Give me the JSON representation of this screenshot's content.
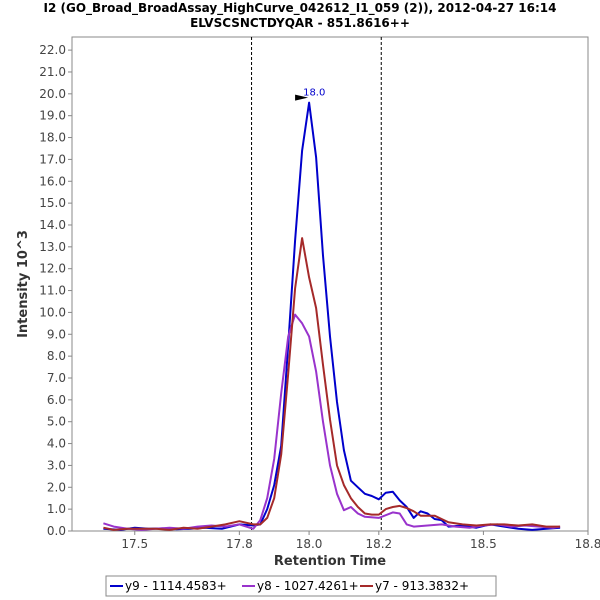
{
  "chart_data": {
    "type": "line",
    "title": "I2 (GO_Broad_BroadAssay_HighCurve_042612_I1_059 (2)), 2012-04-27 16:14",
    "subtitle": "ELVSCSNCTDYQAR - 851.8616++",
    "xlabel": "Retention Time",
    "ylabel": "Intensity 10^3",
    "xlim": [
      17.32,
      18.8
    ],
    "ylim": [
      0,
      22.6
    ],
    "x_ticks": [
      17.5,
      17.8,
      18.0,
      18.2,
      18.5,
      18.8
    ],
    "x_tick_labels": [
      "17.5",
      "17.8",
      "18.0",
      "18.2",
      "18.5",
      "18.8"
    ],
    "y_ticks": [
      0,
      1,
      2,
      3,
      4,
      5,
      6,
      7,
      8,
      9,
      10,
      11,
      12,
      13,
      14,
      15,
      16,
      17,
      18,
      19,
      20,
      21,
      22
    ],
    "y_tick_labels": [
      "0.0",
      "1.0",
      "2.0",
      "3.0",
      "4.0",
      "5.0",
      "6.0",
      "7.0",
      "8.0",
      "9.0",
      "10.0",
      "11.0",
      "12.0",
      "13.0",
      "14.0",
      "15.0",
      "16.0",
      "17.0",
      "18.0",
      "19.0",
      "20.0",
      "21.0",
      "22.0"
    ],
    "vlines": [
      17.835,
      18.207
    ],
    "grid": false,
    "legend_position": "bottom",
    "annotation": {
      "x": 18.0,
      "y": 19.6,
      "label": "18.0"
    },
    "series": [
      {
        "name": "y9 - 1114.4583+",
        "color": "#0000cc",
        "points": [
          [
            17.41,
            0.1
          ],
          [
            17.46,
            0.05
          ],
          [
            17.5,
            0.15
          ],
          [
            17.54,
            0.1
          ],
          [
            17.58,
            0.12
          ],
          [
            17.62,
            0.08
          ],
          [
            17.66,
            0.1
          ],
          [
            17.7,
            0.15
          ],
          [
            17.75,
            0.1
          ],
          [
            17.8,
            0.3
          ],
          [
            17.84,
            0.25
          ],
          [
            17.86,
            0.3
          ],
          [
            17.88,
            1.0
          ],
          [
            17.9,
            2.1
          ],
          [
            17.92,
            3.9
          ],
          [
            17.94,
            8.5
          ],
          [
            17.96,
            13.3
          ],
          [
            17.98,
            17.4
          ],
          [
            18.0,
            19.6
          ],
          [
            18.02,
            17.1
          ],
          [
            18.04,
            12.6
          ],
          [
            18.06,
            8.9
          ],
          [
            18.08,
            5.9
          ],
          [
            18.1,
            3.7
          ],
          [
            18.12,
            2.3
          ],
          [
            18.14,
            2.0
          ],
          [
            18.16,
            1.7
          ],
          [
            18.18,
            1.6
          ],
          [
            18.2,
            1.45
          ],
          [
            18.22,
            1.75
          ],
          [
            18.24,
            1.8
          ],
          [
            18.26,
            1.4
          ],
          [
            18.28,
            1.1
          ],
          [
            18.3,
            0.6
          ],
          [
            18.32,
            0.9
          ],
          [
            18.34,
            0.8
          ],
          [
            18.36,
            0.55
          ],
          [
            18.38,
            0.5
          ],
          [
            18.4,
            0.2
          ],
          [
            18.44,
            0.25
          ],
          [
            18.48,
            0.15
          ],
          [
            18.52,
            0.3
          ],
          [
            18.56,
            0.2
          ],
          [
            18.6,
            0.1
          ],
          [
            18.64,
            0.05
          ],
          [
            18.68,
            0.1
          ],
          [
            18.72,
            0.15
          ]
        ]
      },
      {
        "name": "y8 - 1027.4261+",
        "color": "#9933cc",
        "points": [
          [
            17.41,
            0.35
          ],
          [
            17.44,
            0.2
          ],
          [
            17.48,
            0.1
          ],
          [
            17.52,
            0.05
          ],
          [
            17.56,
            0.1
          ],
          [
            17.6,
            0.15
          ],
          [
            17.64,
            0.1
          ],
          [
            17.68,
            0.2
          ],
          [
            17.72,
            0.25
          ],
          [
            17.76,
            0.2
          ],
          [
            17.8,
            0.3
          ],
          [
            17.84,
            0.1
          ],
          [
            17.86,
            0.5
          ],
          [
            17.88,
            1.5
          ],
          [
            17.9,
            3.3
          ],
          [
            17.92,
            6.3
          ],
          [
            17.94,
            8.9
          ],
          [
            17.96,
            9.9
          ],
          [
            17.98,
            9.5
          ],
          [
            18.0,
            8.9
          ],
          [
            18.02,
            7.3
          ],
          [
            18.04,
            5.0
          ],
          [
            18.06,
            3.0
          ],
          [
            18.08,
            1.7
          ],
          [
            18.1,
            0.95
          ],
          [
            18.12,
            1.1
          ],
          [
            18.14,
            0.8
          ],
          [
            18.16,
            0.65
          ],
          [
            18.2,
            0.6
          ],
          [
            18.24,
            0.85
          ],
          [
            18.26,
            0.8
          ],
          [
            18.28,
            0.3
          ],
          [
            18.3,
            0.2
          ],
          [
            18.34,
            0.25
          ],
          [
            18.38,
            0.3
          ],
          [
            18.42,
            0.2
          ],
          [
            18.46,
            0.15
          ],
          [
            18.5,
            0.25
          ],
          [
            18.54,
            0.3
          ],
          [
            18.58,
            0.2
          ],
          [
            18.62,
            0.25
          ],
          [
            18.66,
            0.2
          ],
          [
            18.7,
            0.15
          ],
          [
            18.72,
            0.2
          ]
        ]
      },
      {
        "name": "y7 - 913.3832+",
        "color": "#a52a2a",
        "points": [
          [
            17.41,
            0.15
          ],
          [
            17.44,
            0.05
          ],
          [
            17.48,
            0.1
          ],
          [
            17.52,
            0.1
          ],
          [
            17.56,
            0.1
          ],
          [
            17.6,
            0.05
          ],
          [
            17.64,
            0.15
          ],
          [
            17.68,
            0.1
          ],
          [
            17.72,
            0.2
          ],
          [
            17.76,
            0.3
          ],
          [
            17.8,
            0.45
          ],
          [
            17.84,
            0.3
          ],
          [
            17.86,
            0.3
          ],
          [
            17.88,
            0.6
          ],
          [
            17.9,
            1.5
          ],
          [
            17.92,
            3.5
          ],
          [
            17.94,
            7.2
          ],
          [
            17.96,
            11.1
          ],
          [
            17.98,
            13.4
          ],
          [
            18.0,
            11.6
          ],
          [
            18.02,
            10.2
          ],
          [
            18.04,
            7.6
          ],
          [
            18.06,
            5.1
          ],
          [
            18.08,
            3.0
          ],
          [
            18.1,
            2.1
          ],
          [
            18.12,
            1.5
          ],
          [
            18.14,
            1.1
          ],
          [
            18.16,
            0.8
          ],
          [
            18.18,
            0.75
          ],
          [
            18.2,
            0.75
          ],
          [
            18.22,
            1.0
          ],
          [
            18.24,
            1.1
          ],
          [
            18.26,
            1.15
          ],
          [
            18.28,
            1.05
          ],
          [
            18.3,
            0.9
          ],
          [
            18.32,
            0.7
          ],
          [
            18.34,
            0.7
          ],
          [
            18.36,
            0.7
          ],
          [
            18.38,
            0.55
          ],
          [
            18.4,
            0.4
          ],
          [
            18.44,
            0.3
          ],
          [
            18.48,
            0.25
          ],
          [
            18.52,
            0.3
          ],
          [
            18.56,
            0.3
          ],
          [
            18.6,
            0.25
          ],
          [
            18.64,
            0.3
          ],
          [
            18.68,
            0.2
          ],
          [
            18.72,
            0.2
          ]
        ]
      }
    ]
  }
}
